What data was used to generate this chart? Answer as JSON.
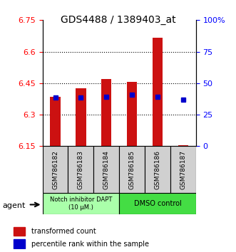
{
  "title": "GDS4488 / 1389403_at",
  "samples": [
    "GSM786182",
    "GSM786183",
    "GSM786184",
    "GSM786185",
    "GSM786186",
    "GSM786187"
  ],
  "red_values": [
    6.385,
    6.425,
    6.47,
    6.455,
    6.665,
    6.155
  ],
  "blue_values": [
    6.38,
    6.38,
    6.385,
    6.395,
    6.385,
    6.37
  ],
  "ymin": 6.15,
  "ymax": 6.75,
  "yticks_left": [
    6.15,
    6.3,
    6.45,
    6.6,
    6.75
  ],
  "yticks_right": [
    0,
    25,
    50,
    75,
    100
  ],
  "ytick_labels_right": [
    "0",
    "25",
    "50",
    "75",
    "100%"
  ],
  "bar_color": "#cc1111",
  "dot_color": "#0000cc",
  "grid_color": "#000000",
  "group1_label": "Notch inhibitor DAPT\n(10 μM.)",
  "group2_label": "DMSO control",
  "group1_color": "#aaffaa",
  "group2_color": "#44dd44",
  "agent_label": "agent",
  "legend_red": "transformed count",
  "legend_blue": "percentile rank within the sample",
  "bar_width": 0.4,
  "ybase": 6.15
}
